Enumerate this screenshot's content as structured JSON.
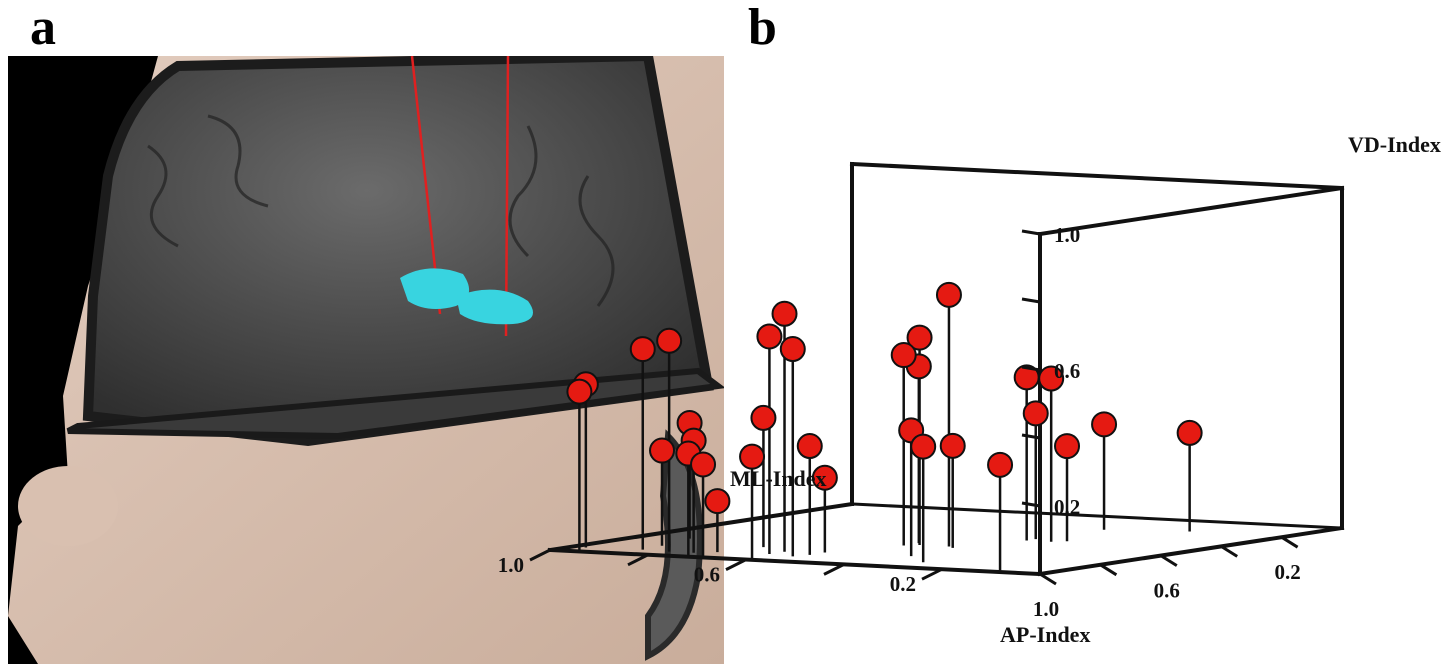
{
  "panels": {
    "a": {
      "label": "a"
    },
    "b": {
      "label": "b"
    }
  },
  "render_a": {
    "skin_color": "#dcc4b4",
    "brain_color": "#4a4a4a",
    "target_color": "#38d4e0",
    "trajectory_color": "#e02020"
  },
  "chart_data": {
    "type": "scatter",
    "projection": "3d-stem",
    "marker_color": "#e51a12",
    "axes": {
      "x": {
        "label": "ML-Index",
        "ticks": [
          1.0,
          0.6,
          0.2
        ],
        "tick_labels": [
          "1.0",
          "0.6",
          "0.2"
        ],
        "range": [
          0,
          1
        ],
        "reversed": true
      },
      "y": {
        "label": "AP-Index",
        "ticks": [
          1.0,
          0.6,
          0.2
        ],
        "tick_labels": [
          "1.0",
          "0.6",
          "0.2"
        ],
        "range": [
          0,
          1
        ],
        "reversed": true
      },
      "z": {
        "label": "VD-Index",
        "ticks": [
          1.0,
          0.6,
          0.2
        ],
        "tick_labels": [
          "1.0",
          "0.6",
          "0.2"
        ],
        "range": [
          0,
          1
        ]
      }
    },
    "points": [
      {
        "ml": 0.42,
        "ap": 0.62,
        "vd": 0.74
      },
      {
        "ml": 0.62,
        "ap": 0.84,
        "vd": 0.7
      },
      {
        "ml": 0.8,
        "ap": 0.93,
        "vd": 0.62
      },
      {
        "ml": 0.62,
        "ap": 0.89,
        "vd": 0.64
      },
      {
        "ml": 0.56,
        "ap": 0.91,
        "vd": 0.61
      },
      {
        "ml": 0.48,
        "ap": 0.62,
        "vd": 0.61
      },
      {
        "ml": 0.86,
        "ap": 0.92,
        "vd": 0.59
      },
      {
        "ml": 0.5,
        "ap": 0.64,
        "vd": 0.56
      },
      {
        "ml": 0.94,
        "ap": 1.0,
        "vd": 0.47
      },
      {
        "ml": 0.97,
        "ap": 0.93,
        "vd": 0.48
      },
      {
        "ml": 0.5,
        "ap": 0.59,
        "vd": 0.52
      },
      {
        "ml": 0.36,
        "ap": 0.46,
        "vd": 0.48
      },
      {
        "ml": 0.31,
        "ap": 0.46,
        "vd": 0.48
      },
      {
        "ml": 0.7,
        "ap": 0.78,
        "vd": 0.38
      },
      {
        "ml": 0.36,
        "ap": 0.43,
        "vd": 0.37
      },
      {
        "ml": 0.75,
        "ap": 0.93,
        "vd": 0.33
      },
      {
        "ml": 0.73,
        "ap": 0.98,
        "vd": 0.3
      },
      {
        "ml": 0.38,
        "ap": 0.81,
        "vd": 0.37
      },
      {
        "ml": 0.3,
        "ap": 0.9,
        "vd": 0.34
      },
      {
        "ml": 0.55,
        "ap": 0.87,
        "vd": 0.32
      },
      {
        "ml": 0.1,
        "ap": 0.97,
        "vd": 0.31
      },
      {
        "ml": 0.6,
        "ap": 0.98,
        "vd": 0.3
      },
      {
        "ml": 0.9,
        "ap": 0.7,
        "vd": 0.34
      },
      {
        "ml": 0.87,
        "ap": 0.84,
        "vd": 0.28
      },
      {
        "ml": 0.4,
        "ap": 0.64,
        "vd": 0.3
      },
      {
        "ml": 0.29,
        "ap": 0.44,
        "vd": 0.28
      },
      {
        "ml": 0.7,
        "ap": 0.98,
        "vd": 0.27
      },
      {
        "ml": 0.35,
        "ap": 0.22,
        "vd": 0.31
      },
      {
        "ml": 0.2,
        "ap": 0.18,
        "vd": 0.29
      },
      {
        "ml": 0.55,
        "ap": 0.82,
        "vd": 0.22
      },
      {
        "ml": 0.72,
        "ap": 0.9,
        "vd": 0.15
      }
    ]
  }
}
